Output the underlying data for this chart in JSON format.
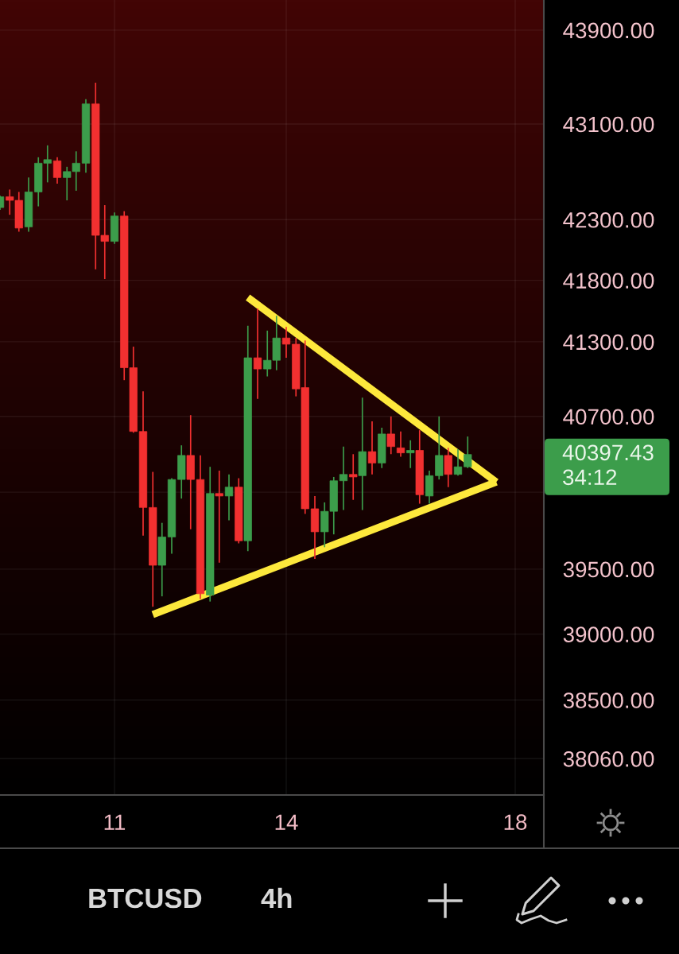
{
  "chart_data": {
    "type": "candlestick",
    "title": "BTCUSD",
    "subtitle": "4h",
    "x": [
      9,
      9.17,
      9.33,
      9.5,
      9.67,
      9.83,
      10,
      10.17,
      10.33,
      10.5,
      10.67,
      10.83,
      11,
      11.17,
      11.33,
      11.5,
      11.67,
      11.83,
      12,
      12.17,
      12.33,
      12.5,
      12.67,
      12.83,
      13,
      13.17,
      13.33,
      13.5,
      13.67,
      13.83,
      14,
      14.17,
      14.33,
      14.5,
      14.67,
      14.83,
      15,
      15.17,
      15.33,
      15.5,
      15.67,
      15.83,
      16,
      16.17,
      16.33,
      16.5,
      16.67,
      16.83,
      17,
      17.17
    ],
    "ohlc": [
      [
        42400,
        42500,
        42380,
        42490
      ],
      [
        42490,
        42550,
        42340,
        42460
      ],
      [
        42460,
        42530,
        42200,
        42230
      ],
      [
        42240,
        42650,
        42200,
        42530
      ],
      [
        42530,
        42820,
        42410,
        42770
      ],
      [
        42770,
        42920,
        42610,
        42800
      ],
      [
        42790,
        42820,
        42600,
        42650
      ],
      [
        42650,
        42740,
        42460,
        42700
      ],
      [
        42700,
        42870,
        42540,
        42770
      ],
      [
        42770,
        43310,
        42690,
        43270
      ],
      [
        43270,
        43450,
        41890,
        42170
      ],
      [
        42170,
        42420,
        41810,
        42120
      ],
      [
        42120,
        42360,
        42100,
        42330
      ],
      [
        42330,
        42370,
        40990,
        41090
      ],
      [
        41090,
        41260,
        40570,
        40580
      ],
      [
        40580,
        40900,
        39760,
        39980
      ],
      [
        39980,
        40260,
        39210,
        39530
      ],
      [
        39530,
        39860,
        39290,
        39750
      ],
      [
        39750,
        40210,
        39620,
        40200
      ],
      [
        40200,
        40470,
        40050,
        40390
      ],
      [
        40390,
        40710,
        39810,
        40200
      ],
      [
        40200,
        40390,
        39270,
        39310
      ],
      [
        39300,
        40300,
        39250,
        40090
      ],
      [
        40090,
        40270,
        39550,
        40070
      ],
      [
        40070,
        40240,
        39880,
        40140
      ],
      [
        40140,
        40210,
        39700,
        39720
      ],
      [
        39720,
        41430,
        39640,
        41170
      ],
      [
        41170,
        41570,
        40840,
        41080
      ],
      [
        41080,
        41390,
        41020,
        41150
      ],
      [
        41150,
        41510,
        41070,
        41330
      ],
      [
        41330,
        41420,
        41170,
        41280
      ],
      [
        41280,
        41330,
        40860,
        40920
      ],
      [
        40930,
        41310,
        39930,
        39970
      ],
      [
        39970,
        40070,
        39580,
        39790
      ],
      [
        39790,
        40020,
        39670,
        39950
      ],
      [
        39950,
        40220,
        39770,
        40190
      ],
      [
        40190,
        40460,
        39960,
        40240
      ],
      [
        40240,
        40400,
        40040,
        40220
      ],
      [
        40230,
        40850,
        39960,
        40420
      ],
      [
        40420,
        40660,
        40240,
        40330
      ],
      [
        40330,
        40610,
        40290,
        40560
      ],
      [
        40560,
        40700,
        40400,
        40460
      ],
      [
        40450,
        40580,
        40380,
        40410
      ],
      [
        40410,
        40510,
        40290,
        40430
      ],
      [
        40430,
        40590,
        40010,
        40080
      ],
      [
        40070,
        40270,
        40010,
        40230
      ],
      [
        40230,
        40700,
        40200,
        40390
      ],
      [
        40390,
        40450,
        40140,
        40240
      ],
      [
        40240,
        40440,
        40230,
        40300
      ],
      [
        40300,
        40540,
        40290,
        40397.43
      ]
    ],
    "colors": [
      "#3c9d4b",
      "#f23030",
      "#f23030",
      "#3c9d4b",
      "#3c9d4b",
      "#3c9d4b",
      "#f23030",
      "#3c9d4b",
      "#3c9d4b",
      "#3c9d4b",
      "#f23030",
      "#f23030",
      "#3c9d4b",
      "#f23030",
      "#f23030",
      "#f23030",
      "#f23030",
      "#3c9d4b",
      "#3c9d4b",
      "#3c9d4b",
      "#f23030",
      "#f23030",
      "#3c9d4b",
      "#f23030",
      "#3c9d4b",
      "#f23030",
      "#3c9d4b",
      "#f23030",
      "#3c9d4b",
      "#3c9d4b",
      "#f23030",
      "#f23030",
      "#f23030",
      "#f23030",
      "#3c9d4b",
      "#3c9d4b",
      "#3c9d4b",
      "#f23030",
      "#3c9d4b",
      "#f23030",
      "#3c9d4b",
      "#f23030",
      "#f23030",
      "#3c9d4b",
      "#f23030",
      "#3c9d4b",
      "#3c9d4b",
      "#f23030",
      "#3c9d4b",
      "#3c9d4b"
    ],
    "series": [
      {
        "type": "line",
        "color": "#fde83c",
        "x": [
          13.33,
          17.67
        ],
        "values": [
          41660,
          40180
        ]
      },
      {
        "type": "line",
        "color": "#fde83c",
        "x": [
          11.67,
          17.67
        ],
        "values": [
          39150,
          40180
        ]
      }
    ],
    "xlim": [
      9,
      18.5
    ],
    "xticks": [
      11,
      14,
      18
    ],
    "ylim": [
      37790,
      44160
    ],
    "yticks": [
      {
        "value": 38060,
        "label": "38060.00"
      },
      {
        "value": 38500,
        "label": "38500.00"
      },
      {
        "value": 39000,
        "label": "39000.00"
      },
      {
        "value": 39500,
        "label": "39500.00"
      },
      {
        "value": 40100,
        "label": null
      },
      {
        "value": 40700,
        "label": "40700.00"
      },
      {
        "value": 41300,
        "label": "41300.00"
      },
      {
        "value": 41800,
        "label": "41800.00"
      },
      {
        "value": 42300,
        "label": "42300.00"
      },
      {
        "value": 43100,
        "label": "43100.00"
      },
      {
        "value": 43900,
        "label": "43900.00"
      }
    ],
    "log": true,
    "grid": true,
    "annotations": [
      "40397.43",
      "34:12"
    ]
  }
}
